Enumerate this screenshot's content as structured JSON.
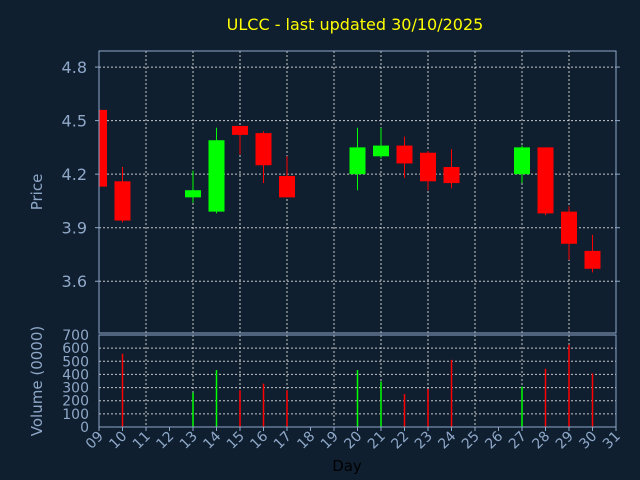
{
  "chart_data": {
    "type": "candlestick",
    "title": "ULCC - last updated 30/10/2025",
    "xlabel": "Day",
    "ylabel": "Price",
    "volume_ylabel": "Volume (0000)",
    "x_tick_labels": [
      "09",
      "10",
      "11",
      "12",
      "13",
      "14",
      "15",
      "16",
      "17",
      "18",
      "19",
      "20",
      "21",
      "22",
      "23",
      "24",
      "25",
      "26",
      "27",
      "28",
      "29",
      "30",
      "31"
    ],
    "y_ticks": [
      3.6,
      3.9,
      4.2,
      4.5,
      4.8
    ],
    "y_tick_labels": [
      "3.6",
      "3.9",
      "4.2",
      "4.5",
      "4.8"
    ],
    "ylim": [
      3.31,
      4.89
    ],
    "volume_ticks": [
      0,
      100,
      200,
      300,
      400,
      500,
      600,
      700
    ],
    "volume_tick_labels": [
      "0",
      "100",
      "200",
      "300",
      "400",
      "500",
      "600",
      "700"
    ],
    "volume_ylim": [
      0,
      700
    ],
    "grid": true,
    "colors": {
      "up": "#00ff00",
      "down": "#ff0000",
      "background": "#0f1f30",
      "title": "#ffff00",
      "axis": "#8fa8c8",
      "grid": "#c8c8c8"
    },
    "candles": [
      {
        "day": "09",
        "open": 4.56,
        "high": 4.56,
        "low": 4.13,
        "close": 4.13
      },
      {
        "day": "10",
        "open": 4.16,
        "high": 4.24,
        "low": 3.93,
        "close": 3.94,
        "volume": 557
      },
      {
        "day": "13",
        "open": 4.07,
        "high": 4.22,
        "low": 4.04,
        "close": 4.11,
        "volume": 262
      },
      {
        "day": "14",
        "open": 3.99,
        "high": 4.46,
        "low": 3.98,
        "close": 4.39,
        "volume": 433
      },
      {
        "day": "15",
        "open": 4.47,
        "high": 4.47,
        "low": 4.31,
        "close": 4.42,
        "volume": 280
      },
      {
        "day": "16",
        "open": 4.43,
        "high": 4.44,
        "low": 4.15,
        "close": 4.25,
        "volume": 330
      },
      {
        "day": "17",
        "open": 4.19,
        "high": 4.3,
        "low": 4.07,
        "close": 4.07,
        "volume": 280
      },
      {
        "day": "20",
        "open": 4.2,
        "high": 4.46,
        "low": 4.11,
        "close": 4.35,
        "volume": 433
      },
      {
        "day": "21",
        "open": 4.3,
        "high": 4.46,
        "low": 4.29,
        "close": 4.36,
        "volume": 346
      },
      {
        "day": "22",
        "open": 4.36,
        "high": 4.41,
        "low": 4.18,
        "close": 4.26,
        "volume": 250
      },
      {
        "day": "23",
        "open": 4.32,
        "high": 4.33,
        "low": 4.11,
        "close": 4.16,
        "volume": 290
      },
      {
        "day": "24",
        "open": 4.24,
        "high": 4.34,
        "low": 4.12,
        "close": 4.15,
        "volume": 511
      },
      {
        "day": "27",
        "open": 4.2,
        "high": 4.36,
        "low": 4.15,
        "close": 4.35,
        "volume": 308
      },
      {
        "day": "28",
        "open": 4.35,
        "high": 4.35,
        "low": 3.97,
        "close": 3.98,
        "volume": 443
      },
      {
        "day": "29",
        "open": 3.99,
        "high": 4.02,
        "low": 3.72,
        "close": 3.81,
        "volume": 626
      },
      {
        "day": "30",
        "open": 3.77,
        "high": 3.86,
        "low": 3.65,
        "close": 3.67,
        "volume": 407
      }
    ]
  }
}
